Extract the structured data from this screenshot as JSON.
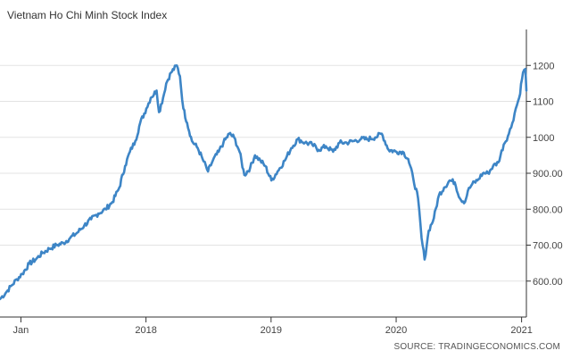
{
  "title": "Vietnam Ho Chi Minh Stock Index",
  "source": "SOURCE: TRADINGECONOMICS.COM",
  "chart_data": {
    "type": "line",
    "title": "Vietnam Ho Chi Minh Stock Index",
    "xlabel": "",
    "ylabel": "",
    "grid": true,
    "legend": "none",
    "ylim": [
      500,
      1300
    ],
    "xlim": [
      "2016-11-01",
      "2021-01-15"
    ],
    "x_ticks": [
      {
        "label": "Jan",
        "date": "2017-01-01"
      },
      {
        "label": "2018",
        "date": "2018-01-01"
      },
      {
        "label": "2019",
        "date": "2019-01-01"
      },
      {
        "label": "2020",
        "date": "2020-01-01"
      },
      {
        "label": "2021",
        "date": "2021-01-01"
      }
    ],
    "y_ticks": [
      {
        "value": 600,
        "label": "600.00"
      },
      {
        "value": 700,
        "label": "700.00"
      },
      {
        "value": 800,
        "label": "800.00"
      },
      {
        "value": 900,
        "label": "900.00"
      },
      {
        "value": 1000,
        "label": "1000"
      },
      {
        "value": 1100,
        "label": "1100"
      },
      {
        "value": 1200,
        "label": "1200"
      }
    ],
    "series": [
      {
        "color": "#3d85c6",
        "x": [
          "2016-11-01",
          "2016-11-20",
          "2016-12-05",
          "2016-12-20",
          "2017-01-05",
          "2017-01-25",
          "2017-02-15",
          "2017-03-05",
          "2017-03-25",
          "2017-04-15",
          "2017-05-05",
          "2017-05-25",
          "2017-06-15",
          "2017-07-05",
          "2017-07-25",
          "2017-08-15",
          "2017-09-05",
          "2017-09-25",
          "2017-10-15",
          "2017-11-01",
          "2017-11-15",
          "2017-12-01",
          "2017-12-15",
          "2018-01-02",
          "2018-01-15",
          "2018-02-01",
          "2018-02-08",
          "2018-02-20",
          "2018-03-01",
          "2018-03-15",
          "2018-04-01",
          "2018-04-10",
          "2018-04-20",
          "2018-05-01",
          "2018-05-15",
          "2018-06-01",
          "2018-06-15",
          "2018-07-01",
          "2018-07-15",
          "2018-08-01",
          "2018-08-15",
          "2018-09-01",
          "2018-09-15",
          "2018-10-01",
          "2018-10-15",
          "2018-11-01",
          "2018-11-15",
          "2018-12-01",
          "2018-12-15",
          "2019-01-02",
          "2019-01-20",
          "2019-02-10",
          "2019-03-01",
          "2019-03-20",
          "2019-04-10",
          "2019-05-01",
          "2019-05-20",
          "2019-06-10",
          "2019-07-01",
          "2019-07-20",
          "2019-08-10",
          "2019-09-01",
          "2019-09-20",
          "2019-10-10",
          "2019-11-01",
          "2019-11-20",
          "2019-12-10",
          "2020-01-02",
          "2020-01-20",
          "2020-02-05",
          "2020-02-20",
          "2020-03-05",
          "2020-03-15",
          "2020-03-24",
          "2020-04-05",
          "2020-04-20",
          "2020-05-05",
          "2020-05-20",
          "2020-06-05",
          "2020-06-20",
          "2020-07-05",
          "2020-07-20",
          "2020-07-28",
          "2020-08-10",
          "2020-08-25",
          "2020-09-10",
          "2020-09-25",
          "2020-10-10",
          "2020-10-25",
          "2020-11-10",
          "2020-11-25",
          "2020-12-05",
          "2020-12-15",
          "2020-12-25",
          "2021-01-05",
          "2021-01-12",
          "2021-01-15"
        ],
        "y": [
          550,
          570,
          588,
          605,
          620,
          648,
          662,
          678,
          690,
          700,
          706,
          720,
          735,
          755,
          772,
          788,
          800,
          820,
          860,
          920,
          960,
          990,
          1040,
          1080,
          1110,
          1130,
          1070,
          1110,
          1150,
          1180,
          1200,
          1170,
          1080,
          1040,
          990,
          970,
          940,
          905,
          935,
          960,
          985,
          1010,
          1000,
          960,
          895,
          915,
          950,
          935,
          920,
          880,
          905,
          935,
          970,
          995,
          985,
          980,
          965,
          975,
          960,
          985,
          985,
          990,
          995,
          995,
          1000,
          1010,
          965,
          960,
          960,
          940,
          885,
          830,
          720,
          660,
          740,
          775,
          840,
          860,
          880,
          875,
          830,
          820,
          850,
          870,
          880,
          900,
          900,
          920,
          930,
          980,
          1010,
          1040,
          1080,
          1110,
          1180,
          1190,
          1130
        ]
      }
    ]
  }
}
